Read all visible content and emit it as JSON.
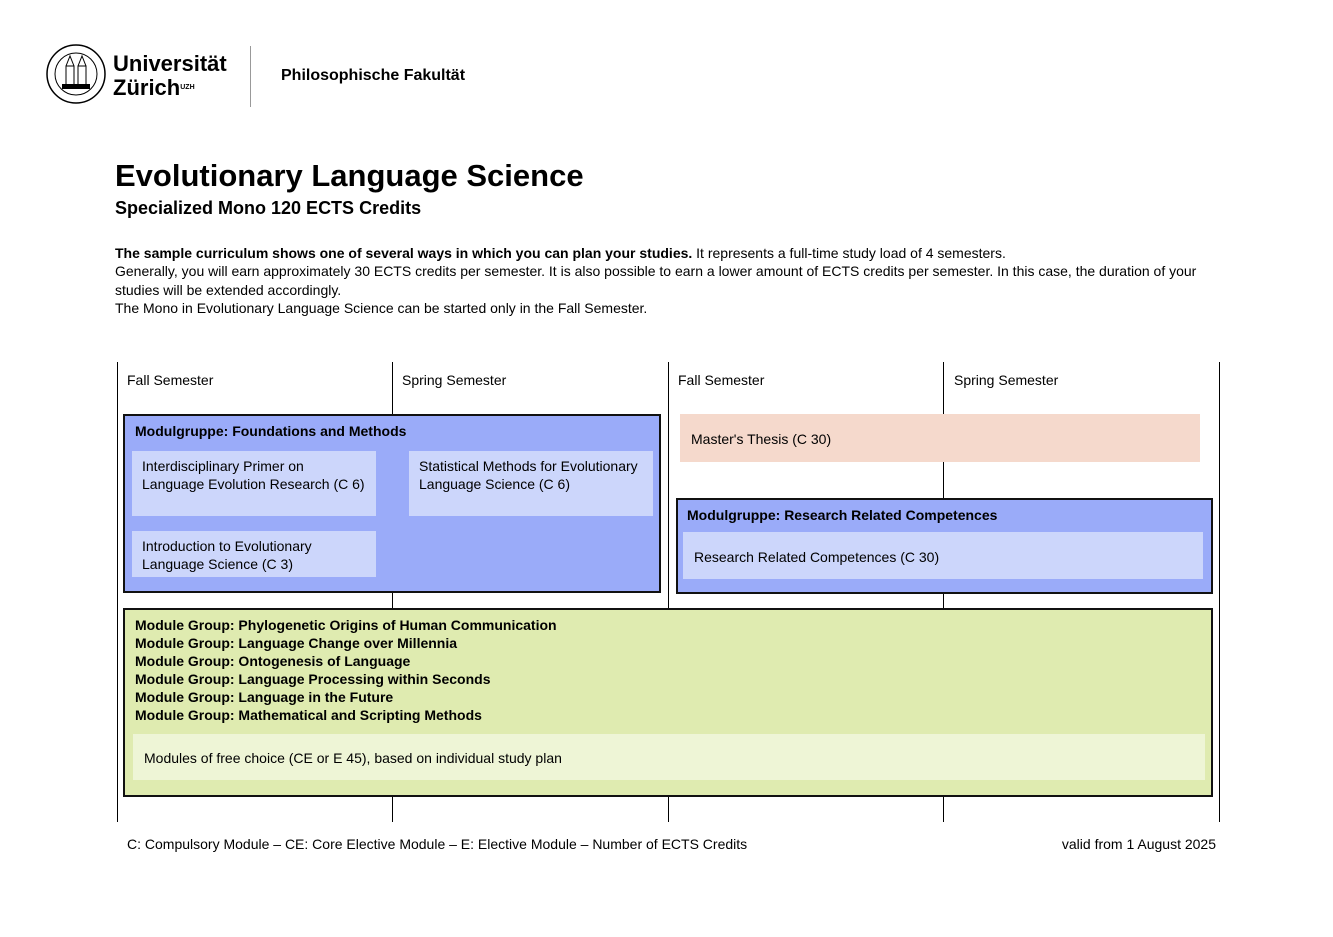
{
  "header": {
    "university_line1": "Universität",
    "university_line2": "Zürich",
    "university_sup": "UZH",
    "faculty": "Philosophische Fakultät",
    "logo": "uzh-seal"
  },
  "title": "Evolutionary Language Science",
  "subtitle": "Specialized Mono 120 ECTS Credits",
  "intro": {
    "bold": "The sample curriculum shows one of several ways in which you can plan your studies.",
    "rest": " It represents a full-time study load of 4 semesters.",
    "line2": "Generally, you will earn approximately 30 ECTS credits per semester. It is also possible to earn a lower amount of ECTS credits per semester. In this case, the duration of your studies will be extended accordingly.",
    "line3": "The Mono in Evolutionary Language Science can be started only in the Fall Semester."
  },
  "semesters": [
    "Fall Semester",
    "Spring Semester",
    "Fall Semester",
    "Spring Semester"
  ],
  "foundations": {
    "title": "Modulgruppe: Foundations and Methods",
    "modules": [
      "Interdisciplinary Primer on Language Evolution Research (C 6)",
      "Statistical Methods for Evolutionary Language Science (C 6)",
      "Introduction to Evolutionary Language Science (C 3)"
    ]
  },
  "thesis": "Master's Thesis  (C 30)",
  "research": {
    "title": "Modulgruppe: Research Related Competences",
    "module": "Research Related Competences (C 30)"
  },
  "electives": {
    "groups": [
      "Module Group: Phylogenetic Origins of Human Communication",
      "Module Group: Language Change over Millennia",
      "Module Group: Ontogenesis of Language",
      "Module Group: Language Processing within Seconds",
      "Module Group: Language in the Future",
      "Module Group: Mathematical and Scripting Methods"
    ],
    "module": "Modules of free choice (CE or E 45), based on individual study plan"
  },
  "footer": {
    "legend": "C: Compulsory Module – CE: Core Elective Module – E: Elective Module – Number of ECTS Credits",
    "valid": "valid from 1 August 2025"
  },
  "colors": {
    "group_blue": "#9aabf9",
    "module_blue": "#ccd6fb",
    "thesis": "#f5d9cc",
    "group_green": "#dfebb0",
    "module_green": "#eef5d6"
  }
}
